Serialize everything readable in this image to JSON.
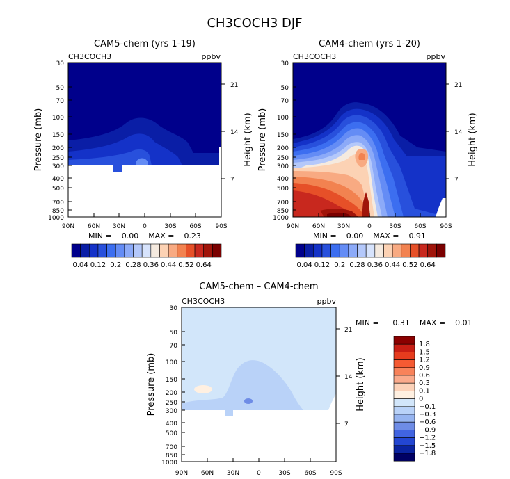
{
  "main_title": "CH3COCH3 DJF",
  "chart_data": [
    {
      "type": "heatmap",
      "title": "CAM5-chem (yrs 1-19)",
      "field_label": "CH3COCH3",
      "units": "ppbv",
      "ylabel": "Pressure (mb)",
      "y2label": "Height (km)",
      "x_ticks": [
        "90N",
        "60N",
        "30N",
        "0",
        "30S",
        "60S",
        "90S"
      ],
      "y_ticks": [
        "30",
        "50",
        "70",
        "100",
        "150",
        "200",
        "250",
        "300",
        "400",
        "500",
        "700",
        "850",
        "1000"
      ],
      "y2_ticks": [
        "21",
        "14",
        "7"
      ],
      "stats_text": "MIN =    0.00    MAX =    0.23",
      "min": 0.0,
      "max": 0.23,
      "colorbar_labels": [
        "0.04",
        "0.12",
        "0.2",
        "0.28",
        "0.36",
        "0.44",
        "0.52",
        "0.64"
      ]
    },
    {
      "type": "heatmap",
      "title": "CAM4-chem (yrs 1-20)",
      "field_label": "CH3COCH3",
      "units": "ppbv",
      "ylabel": "Pressure (mb)",
      "y2label": "Height (km)",
      "x_ticks": [
        "90N",
        "60N",
        "30N",
        "0",
        "30S",
        "60S",
        "90S"
      ],
      "y_ticks": [
        "30",
        "50",
        "70",
        "100",
        "150",
        "200",
        "250",
        "300",
        "400",
        "500",
        "700",
        "850",
        "1000"
      ],
      "y2_ticks": [
        "21",
        "14",
        "7"
      ],
      "stats_text": "MIN =    0.00    MAX =    0.91",
      "min": 0.0,
      "max": 0.91,
      "colorbar_labels": [
        "0.04",
        "0.12",
        "0.2",
        "0.28",
        "0.36",
        "0.44",
        "0.52",
        "0.64"
      ]
    },
    {
      "type": "heatmap",
      "title": "CAM5-chem – CAM4-chem",
      "field_label": "CH3COCH3",
      "units": "ppbv",
      "ylabel": "Pressure (mb)",
      "y2label": "Height (km)",
      "x_ticks": [
        "90N",
        "60N",
        "30N",
        "0",
        "30S",
        "60S",
        "90S"
      ],
      "y_ticks": [
        "30",
        "50",
        "70",
        "100",
        "150",
        "200",
        "250",
        "300",
        "400",
        "500",
        "700",
        "850",
        "1000"
      ],
      "y2_ticks": [
        "21",
        "14",
        "7"
      ],
      "stats_text": "MIN =   −0.31    MAX =    0.01",
      "min": -0.31,
      "max": 0.01,
      "colorbar_labels": [
        "1.8",
        "1.5",
        "1.2",
        "0.9",
        "0.6",
        "0.3",
        "0.1",
        "0",
        "−0.1",
        "−0.3",
        "−0.6",
        "−0.9",
        "−1.2",
        "−1.5",
        "−1.8"
      ]
    }
  ],
  "colors": {
    "seq": [
      "#00008b",
      "#0a1ea6",
      "#1432c8",
      "#2850dc",
      "#3c6ef0",
      "#648cf5",
      "#8caaf8",
      "#b4c8fa",
      "#d7e3fc",
      "#f5eadf",
      "#fcd2b4",
      "#f8aa82",
      "#f28250",
      "#e65028",
      "#c8281e",
      "#a0140a",
      "#7a0000"
    ],
    "div": [
      "#8b0000",
      "#c81e14",
      "#e63c1e",
      "#f55a32",
      "#f8825a",
      "#faaa8c",
      "#fcd2b9",
      "#fff0e1",
      "#d2e6fa",
      "#b9d2f8",
      "#96b4f0",
      "#6e8ce6",
      "#4164e1",
      "#2346d2",
      "#0a23a0",
      "#000064"
    ]
  }
}
